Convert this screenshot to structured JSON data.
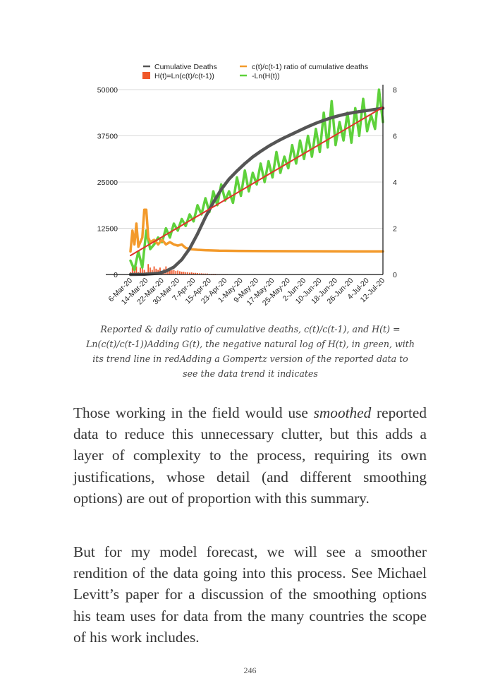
{
  "chart_data": {
    "type": "line",
    "title": "",
    "legend_placement": "top",
    "legend": [
      {
        "name": "Cumulative Deaths",
        "color": "#555555",
        "kind": "line"
      },
      {
        "name": "c(t)/c(t-1) ratio of cumulative deaths",
        "color": "#f39a2b",
        "kind": "line"
      },
      {
        "name": "H(t)=Ln(c(t)/c(t-1))",
        "color": "#f0582a",
        "kind": "bar"
      },
      {
        "name": "-Ln(H(t))",
        "color": "#5ed13b",
        "kind": "line"
      }
    ],
    "x_tick_labels": [
      "6-Mar-20",
      "14-Mar-20",
      "22-Mar-20",
      "30-Mar-20",
      "7-Apr-20",
      "15-Apr-20",
      "23-Apr-20",
      "1-May-20",
      "9-May-20",
      "17-May-20",
      "25-May-20",
      "2-Jun-20",
      "10-Jun-20",
      "18-Jun-20",
      "26-Jun-20",
      "4-Jul-20",
      "12-Jul-20"
    ],
    "x_range": [
      "6-Mar-20",
      "12-Jul-20"
    ],
    "y_left": {
      "range": [
        0,
        50000
      ],
      "ticks": [
        "0",
        "12500",
        "25000",
        "37500",
        "50000"
      ]
    },
    "y_right": {
      "range": [
        0,
        8
      ],
      "ticks": [
        "0",
        "2",
        "4",
        "6",
        "8"
      ]
    },
    "grid": true,
    "series": [
      {
        "name": "Cumulative Deaths",
        "axis": "left",
        "color": "#555555",
        "points": [
          [
            0,
            0
          ],
          [
            7,
            50
          ],
          [
            14,
            300
          ],
          [
            18,
            900
          ],
          [
            22,
            2000
          ],
          [
            26,
            4000
          ],
          [
            30,
            7000
          ],
          [
            34,
            11000
          ],
          [
            38,
            15500
          ],
          [
            42,
            19500
          ],
          [
            46,
            23000
          ],
          [
            50,
            25800
          ],
          [
            54,
            28000
          ],
          [
            58,
            30000
          ],
          [
            62,
            31800
          ],
          [
            66,
            33300
          ],
          [
            70,
            34700
          ],
          [
            74,
            35900
          ],
          [
            78,
            37000
          ],
          [
            82,
            38000
          ],
          [
            86,
            39000
          ],
          [
            90,
            40000
          ],
          [
            94,
            40900
          ],
          [
            98,
            41700
          ],
          [
            102,
            42400
          ],
          [
            106,
            43000
          ],
          [
            110,
            43500
          ],
          [
            114,
            43900
          ],
          [
            118,
            44200
          ],
          [
            122,
            44500
          ],
          [
            126,
            44800
          ],
          [
            128,
            45000
          ]
        ]
      },
      {
        "name": "c(t)/c(t-1) ratio of cumulative deaths",
        "axis": "right",
        "color": "#f39a2b",
        "points": [
          [
            0,
            1.0
          ],
          [
            1,
            1.9
          ],
          [
            2,
            1.3
          ],
          [
            3,
            2.2
          ],
          [
            4,
            1.2
          ],
          [
            6,
            1.6
          ],
          [
            7,
            2.8
          ],
          [
            8,
            2.8
          ],
          [
            9,
            1.6
          ],
          [
            10,
            1.4
          ],
          [
            12,
            1.5
          ],
          [
            14,
            1.3
          ],
          [
            16,
            1.5
          ],
          [
            18,
            1.3
          ],
          [
            20,
            1.4
          ],
          [
            22,
            1.3
          ],
          [
            24,
            1.25
          ],
          [
            26,
            1.3
          ],
          [
            28,
            1.15
          ],
          [
            30,
            1.1
          ],
          [
            34,
            1.07
          ],
          [
            38,
            1.05
          ],
          [
            45,
            1.03
          ],
          [
            55,
            1.02
          ],
          [
            70,
            1.01
          ],
          [
            128,
            1.0
          ]
        ]
      },
      {
        "name": "H(t)=Ln(c(t)/c(t-1))",
        "axis": "right",
        "color": "#f0582a",
        "type": "bar",
        "values": [
          0.1,
          0.4,
          0.2,
          0.35,
          0.1,
          0.3,
          0.45,
          0.2,
          0.1,
          0.45,
          0.3,
          0.2,
          0.35,
          0.25,
          0.2,
          0.3,
          0.15,
          0.25,
          0.35,
          0.2,
          0.3,
          0.18,
          0.2,
          0.15,
          0.17,
          0.14,
          0.12,
          0.12,
          0.1,
          0.1,
          0.08,
          0.09,
          0.07,
          0.07,
          0.06,
          0.05,
          0.05,
          0.04,
          0.04,
          0.04,
          0.03,
          0.03,
          0.03,
          0.03,
          0.02,
          0.02,
          0.02,
          0.02,
          0.02,
          0.02
        ]
      },
      {
        "name": "-Ln(H(t))",
        "axis": "right",
        "color": "#5ed13b",
        "points": [
          [
            0,
            0.6
          ],
          [
            2,
            0.2
          ],
          [
            4,
            1.0
          ],
          [
            6,
            0.3
          ],
          [
            8,
            1.9
          ],
          [
            10,
            1.1
          ],
          [
            12,
            1.3
          ],
          [
            14,
            1.6
          ],
          [
            16,
            1.4
          ],
          [
            18,
            2.0
          ],
          [
            20,
            1.6
          ],
          [
            22,
            2.2
          ],
          [
            24,
            1.9
          ],
          [
            26,
            2.4
          ],
          [
            28,
            2.1
          ],
          [
            30,
            2.6
          ],
          [
            32,
            2.3
          ],
          [
            34,
            3.0
          ],
          [
            36,
            2.6
          ],
          [
            38,
            3.3
          ],
          [
            40,
            2.7
          ],
          [
            42,
            3.6
          ],
          [
            44,
            3.0
          ],
          [
            46,
            3.9
          ],
          [
            48,
            3.2
          ],
          [
            50,
            3.6
          ],
          [
            52,
            3.1
          ],
          [
            54,
            4.2
          ],
          [
            56,
            3.4
          ],
          [
            58,
            4.5
          ],
          [
            60,
            3.6
          ],
          [
            62,
            4.4
          ],
          [
            64,
            3.9
          ],
          [
            66,
            4.8
          ],
          [
            68,
            4.0
          ],
          [
            70,
            4.9
          ],
          [
            72,
            4.2
          ],
          [
            74,
            5.3
          ],
          [
            76,
            4.4
          ],
          [
            78,
            5.1
          ],
          [
            80,
            4.6
          ],
          [
            82,
            5.6
          ],
          [
            84,
            4.8
          ],
          [
            86,
            5.8
          ],
          [
            88,
            5.0
          ],
          [
            90,
            6.0
          ],
          [
            92,
            5.1
          ],
          [
            94,
            6.3
          ],
          [
            96,
            5.3
          ],
          [
            98,
            7.0
          ],
          [
            100,
            5.5
          ],
          [
            102,
            7.5
          ],
          [
            104,
            5.6
          ],
          [
            106,
            6.6
          ],
          [
            108,
            5.8
          ],
          [
            110,
            7.0
          ],
          [
            112,
            5.7
          ],
          [
            114,
            7.2
          ],
          [
            116,
            6.0
          ],
          [
            118,
            7.6
          ],
          [
            120,
            6.2
          ],
          [
            122,
            6.9
          ],
          [
            124,
            6.3
          ],
          [
            126,
            8.0
          ],
          [
            128,
            6.6
          ]
        ]
      },
      {
        "name": "",
        "axis": "right",
        "color": "#e0322a",
        "kind": "trend",
        "points": [
          [
            0,
            0.82
          ],
          [
            128,
            7.24
          ]
        ]
      }
    ]
  },
  "caption": "Reported & daily ratio of cumulative deaths, c(t)/c(t-1), and H(t) = Ln(c(t)/c(t-1))Adding G(t), the negative natural log of H(t), in green, with its trend line in redAdding a Gompertz version of the reported data to see the data trend it indicates",
  "paragraphs": {
    "p1_before": "Those working in the field would use ",
    "p1_emphasis": "smoothed",
    "p1_after": " reported data to reduce this unnecessary clutter, but this adds a layer of complexity to the process, requiring its own justifications, whose detail (and different smoothing options) are out of proportion with this summary.",
    "p2": "But for my model forecast, we will see a smoother rendition of the data going into this process. See Michael Levitt’s paper for a discussion of the smoothing options his team uses for data from the many countries the scope of his work includes."
  },
  "page_number": "246"
}
